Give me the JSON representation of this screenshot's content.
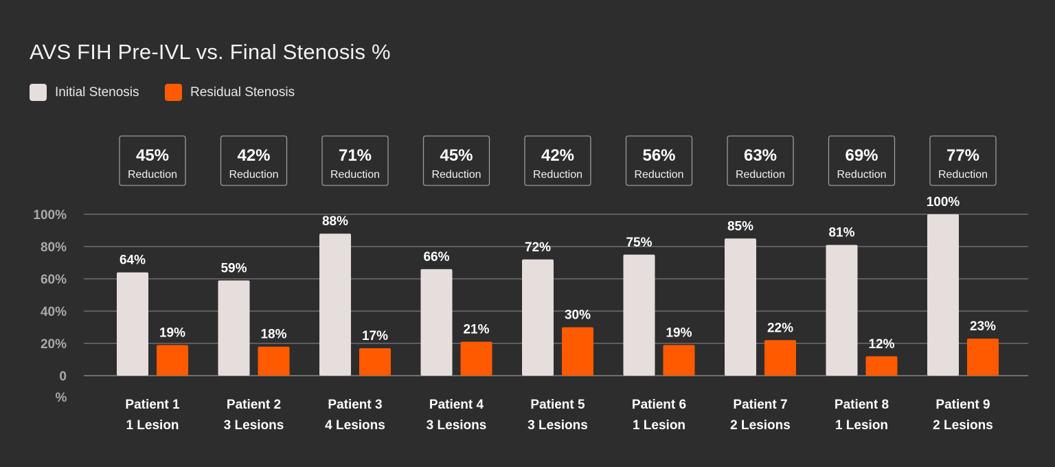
{
  "chart_data": {
    "type": "bar",
    "title": "AVS FIH Pre-IVL vs. Final Stenosis %",
    "xlabel": "",
    "ylabel": "",
    "ylim": [
      0,
      100
    ],
    "yticks": [
      "0",
      "20%",
      "40%",
      "60%",
      "80%",
      "100%"
    ],
    "yunit_label": "%",
    "grid": true,
    "legend_position": "top-left",
    "categories": [
      {
        "patient": "Patient 1",
        "lesions": "1 Lesion"
      },
      {
        "patient": "Patient 2",
        "lesions": "3 Lesions"
      },
      {
        "patient": "Patient 3",
        "lesions": "4 Lesions"
      },
      {
        "patient": "Patient 4",
        "lesions": "3 Lesions"
      },
      {
        "patient": "Patient 5",
        "lesions": "3 Lesions"
      },
      {
        "patient": "Patient 6",
        "lesions": "1 Lesion"
      },
      {
        "patient": "Patient 7",
        "lesions": "2 Lesions"
      },
      {
        "patient": "Patient 8",
        "lesions": "1 Lesion"
      },
      {
        "patient": "Patient 9",
        "lesions": "2 Lesions"
      }
    ],
    "series": [
      {
        "name": "Initial Stenosis",
        "color": "#e5dedc",
        "values": [
          64,
          59,
          88,
          66,
          72,
          75,
          85,
          81,
          100
        ],
        "labels": [
          "64%",
          "59%",
          "88%",
          "66%",
          "72%",
          "75%",
          "85%",
          "81%",
          "100%"
        ]
      },
      {
        "name": "Residual Stenosis",
        "color": "#ff5a00",
        "values": [
          19,
          18,
          17,
          21,
          30,
          19,
          22,
          12,
          23
        ],
        "labels": [
          "19%",
          "18%",
          "17%",
          "21%",
          "30%",
          "19%",
          "22%",
          "12%",
          "23%"
        ]
      }
    ],
    "annotations": [
      {
        "value": "45%",
        "text": "Reduction"
      },
      {
        "value": "42%",
        "text": "Reduction"
      },
      {
        "value": "71%",
        "text": "Reduction"
      },
      {
        "value": "45%",
        "text": "Reduction"
      },
      {
        "value": "42%",
        "text": "Reduction"
      },
      {
        "value": "56%",
        "text": "Reduction"
      },
      {
        "value": "63%",
        "text": "Reduction"
      },
      {
        "value": "69%",
        "text": "Reduction"
      },
      {
        "value": "77%",
        "text": "Reduction"
      }
    ]
  },
  "colors": {
    "background": "#2d2d2d",
    "initial": "#e5dedc",
    "residual": "#ff5a00",
    "grid": "#6e6e6e",
    "axis_text": "#a9a9a9",
    "text": "#ffffff"
  }
}
